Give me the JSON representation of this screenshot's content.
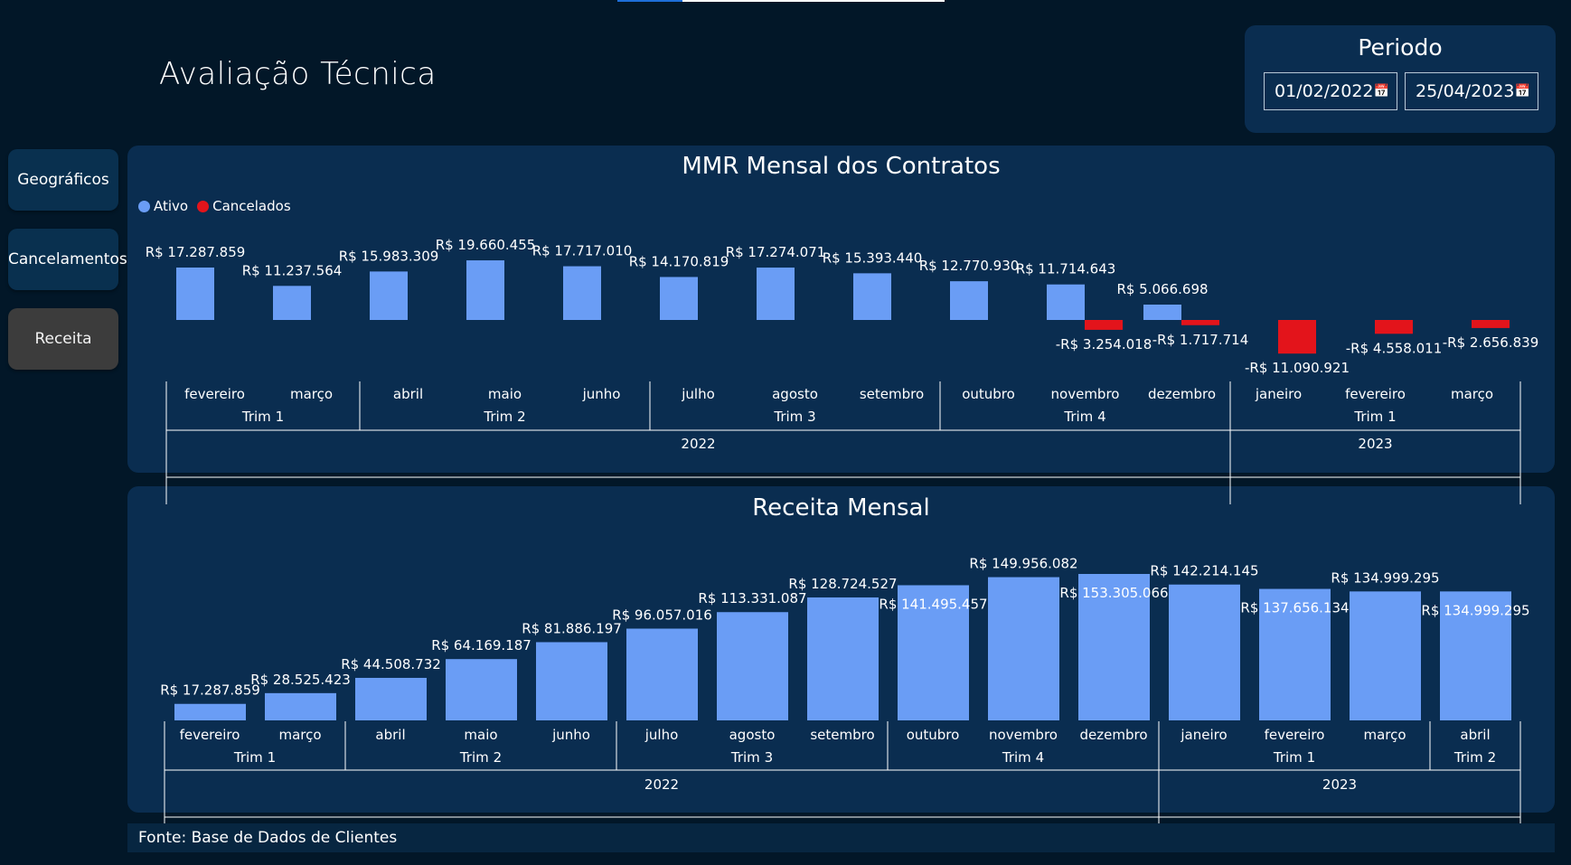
{
  "page": {
    "title": "Avaliação Técnica"
  },
  "period": {
    "title": "Periodo",
    "start_date": "01/02/2022",
    "end_date": "25/04/2023",
    "calendar_icon": "calendar-icon"
  },
  "nav": {
    "items": [
      {
        "label": "Geográficos",
        "active": false
      },
      {
        "label": "Cancelamentos",
        "active": false
      },
      {
        "label": "Receita",
        "active": true
      }
    ]
  },
  "colors": {
    "ativo": "#6a9df5",
    "cancelados": "#e3141b",
    "background": "#021728",
    "panel": "#0a2d50"
  },
  "footer": {
    "source": "Fonte: Base de Dados de Clientes"
  },
  "chart_data": [
    {
      "type": "bar",
      "title": "MMR Mensal dos Contratos",
      "legend": [
        "Ativo",
        "Cancelados"
      ],
      "legend_position": "top-left",
      "categories": [
        "fevereiro",
        "março",
        "abril",
        "maio",
        "junho",
        "julho",
        "agosto",
        "setembro",
        "outubro",
        "novembro",
        "dezembro",
        "janeiro",
        "fevereiro",
        "março"
      ],
      "series": [
        {
          "name": "Ativo",
          "values": [
            17287859,
            11237564,
            15983309,
            19660455,
            17717010,
            14170819,
            17274071,
            15393440,
            12770930,
            11714643,
            5066698,
            null,
            null,
            null
          ],
          "labels": [
            "R$ 17.287.859",
            "R$ 11.237.564",
            "R$ 15.983.309",
            "R$ 19.660.455",
            "R$ 17.717.010",
            "R$ 14.170.819",
            "R$ 17.274.071",
            "R$ 15.393.440",
            "R$ 12.770.930",
            "R$ 11.714.643",
            "R$ 5.066.698",
            "",
            "",
            ""
          ]
        },
        {
          "name": "Cancelados",
          "values": [
            null,
            null,
            null,
            null,
            null,
            null,
            null,
            null,
            null,
            -3254018,
            -1717714,
            -11090921,
            -4558011,
            -2656839
          ],
          "labels": [
            "",
            "",
            "",
            "",
            "",
            "",
            "",
            "",
            "",
            "-R$ 3.254.018",
            "-R$ 1.717.714",
            "-R$ 11.090.921",
            "-R$ 4.558.011",
            "-R$ 2.656.839"
          ]
        }
      ],
      "quarters": [
        {
          "label": "Trim 1",
          "months": 2
        },
        {
          "label": "Trim 2",
          "months": 3
        },
        {
          "label": "Trim 3",
          "months": 3
        },
        {
          "label": "Trim 4",
          "months": 3
        },
        {
          "label": "Trim 1",
          "months": 3
        }
      ],
      "years": [
        {
          "label": "2022",
          "months": 11
        },
        {
          "label": "2023",
          "months": 3
        }
      ]
    },
    {
      "type": "bar",
      "title": "Receita Mensal",
      "categories": [
        "fevereiro",
        "março",
        "abril",
        "maio",
        "junho",
        "julho",
        "agosto",
        "setembro",
        "outubro",
        "novembro",
        "dezembro",
        "janeiro",
        "fevereiro",
        "março",
        "abril"
      ],
      "series": [
        {
          "name": "Receita",
          "values": [
            17287859,
            28525423,
            44508732,
            64169187,
            81886197,
            96057016,
            113331087,
            128724527,
            141495457,
            149956082,
            153305066,
            142214145,
            137656134,
            134999295,
            134999295
          ],
          "labels": [
            "R$ 17.287.859",
            "R$ 28.525.423",
            "R$ 44.508.732",
            "R$ 64.169.187",
            "R$ 81.886.197",
            "R$ 96.057.016",
            "R$ 113.331.087",
            "R$ 128.724.527",
            "R$ 141.495.457",
            "R$ 149.956.082",
            "R$ 153.305.066",
            "R$ 142.214.145",
            "R$ 137.656.134",
            "R$ 134.999.295",
            "R$ 134.999.295"
          ]
        }
      ],
      "quarters": [
        {
          "label": "Trim 1",
          "months": 2
        },
        {
          "label": "Trim 2",
          "months": 3
        },
        {
          "label": "Trim 3",
          "months": 3
        },
        {
          "label": "Trim 4",
          "months": 3
        },
        {
          "label": "Trim 1",
          "months": 3
        },
        {
          "label": "Trim 2",
          "months": 1
        }
      ],
      "years": [
        {
          "label": "2022",
          "months": 11
        },
        {
          "label": "2023",
          "months": 4
        }
      ]
    }
  ]
}
